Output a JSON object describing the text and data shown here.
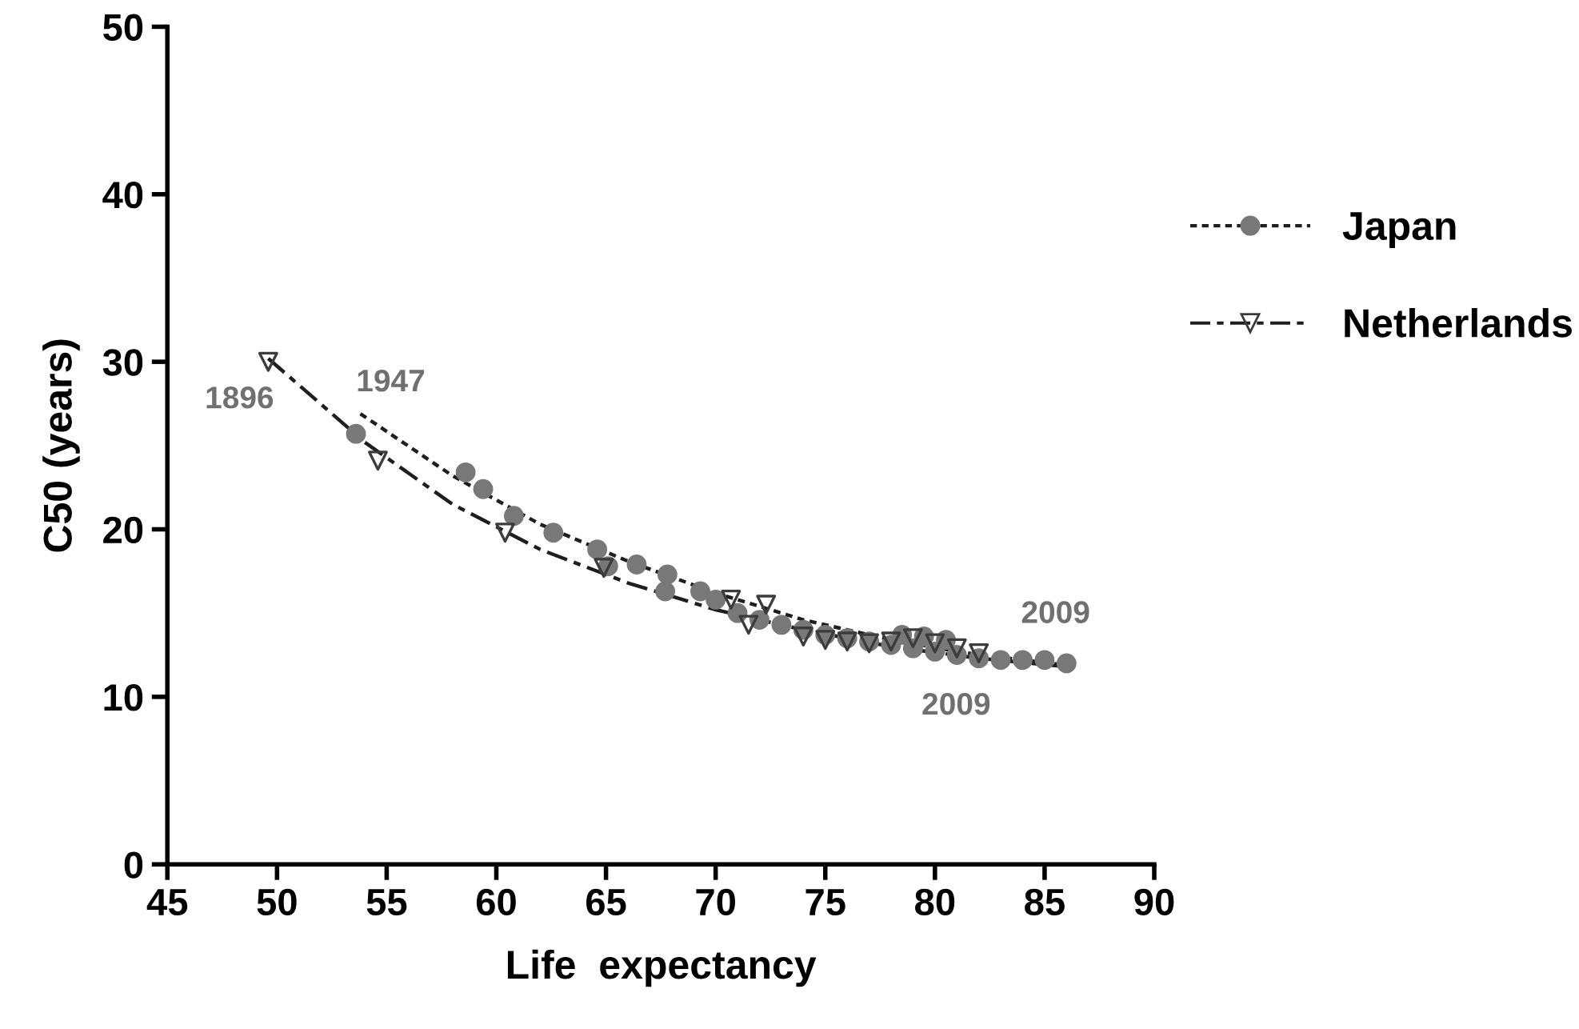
{
  "chart_data": {
    "type": "scatter",
    "xlabel": "Life  expectancy",
    "ylabel": "C50 (years)",
    "xlim": [
      45,
      90
    ],
    "ylim": [
      0,
      50
    ],
    "xticks": [
      45,
      50,
      55,
      60,
      65,
      70,
      75,
      80,
      85,
      90
    ],
    "yticks": [
      0,
      10,
      20,
      30,
      40,
      50
    ],
    "grid": false,
    "legend": "right",
    "series": [
      {
        "name": "Japan",
        "color": "#787878",
        "marker": "circle",
        "line_style": "dotted",
        "x": [
          53.6,
          58.6,
          59.4,
          60.8,
          62.6,
          64.6,
          65.1,
          66.4,
          67.8,
          67.7,
          69.3,
          70.0,
          71.0,
          72.0,
          73.0,
          74.0,
          75.0,
          76.0,
          77.0,
          78.0,
          78.5,
          79.0,
          79.5,
          80.0,
          80.5,
          81.0,
          82.0,
          83.0,
          84.0,
          85.0,
          86.0
        ],
        "values": [
          25.7,
          23.4,
          22.4,
          20.8,
          19.8,
          18.8,
          17.8,
          17.9,
          17.3,
          16.3,
          16.3,
          15.8,
          15.0,
          14.6,
          14.3,
          14.0,
          13.7,
          13.5,
          13.3,
          13.1,
          13.7,
          12.9,
          13.6,
          12.7,
          13.4,
          12.5,
          12.3,
          12.2,
          12.2,
          12.2,
          12.0
        ]
      },
      {
        "name": "Netherlands",
        "color": "#3c3c3c",
        "marker": "triangle",
        "line_style": "dashed",
        "x": [
          49.6,
          54.6,
          60.4,
          64.9,
          70.7,
          71.5,
          72.3,
          74.0,
          75.0,
          76.0,
          77.0,
          78.0,
          79.0,
          80.0,
          81.0,
          82.0
        ],
        "values": [
          30.0,
          24.1,
          19.8,
          17.7,
          15.8,
          14.3,
          15.5,
          13.6,
          13.4,
          13.3,
          13.2,
          13.3,
          13.5,
          13.2,
          12.9,
          12.6
        ]
      },
      {
        "type": "line",
        "color": "#1e1e1e",
        "line_style": "dotted",
        "x": [
          53.8,
          58,
          62,
          66,
          70,
          74,
          78,
          82,
          86
        ],
        "values": [
          26.9,
          23.2,
          20.3,
          18.1,
          16.2,
          14.6,
          13.4,
          12.5,
          11.9
        ]
      },
      {
        "type": "line",
        "color": "#1e1e1e",
        "line_style": "dashed",
        "x": [
          49.6,
          54,
          58,
          62,
          66,
          70,
          74,
          78,
          82,
          86
        ],
        "values": [
          30.2,
          25.2,
          21.5,
          18.8,
          16.8,
          15.2,
          14.0,
          13.0,
          12.3,
          11.8
        ]
      }
    ],
    "annotations": [
      {
        "text": "1896",
        "x": 49.6,
        "y": 30.0
      },
      {
        "text": "1947",
        "x": 53.8,
        "y": 26.9
      },
      {
        "text": "2009",
        "x": 82.0,
        "y": 12.6
      },
      {
        "text": "2009",
        "x": 86.0,
        "y": 12.0
      }
    ]
  }
}
